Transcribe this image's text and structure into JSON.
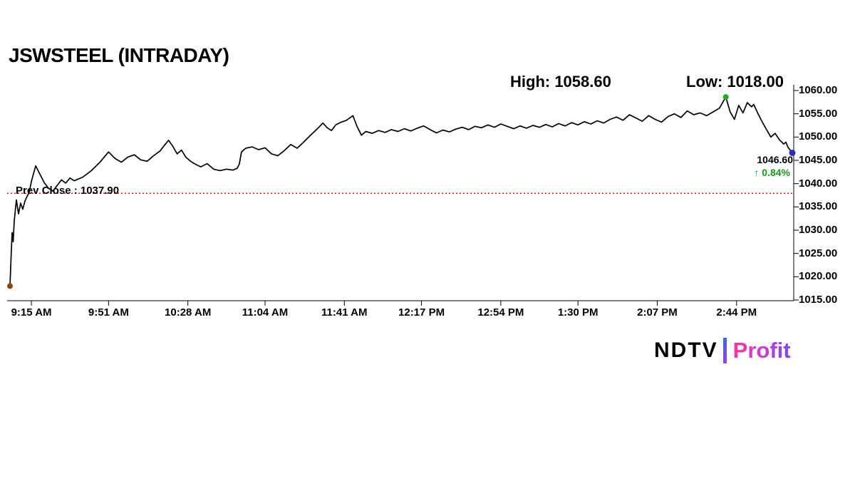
{
  "title": "JSWSTEEL (INTRADAY)",
  "labels": {
    "high": "High: 1058.60",
    "low": "Low: 1018.00",
    "prev_close": "Prev Close : 1037.90",
    "last_price": "1046.60",
    "change_percent": "↑ 0.84%"
  },
  "logo": {
    "ndtv": "NDTV",
    "separator": "|",
    "profit": "Profit"
  },
  "colors": {
    "line": "#000000",
    "prev_close": "#ff0000",
    "gain_text": "#159b15",
    "high_dot": "#28a428",
    "last_dot": "#2233bb",
    "open_dot": "#8b4513",
    "profit_gradient_start": "#ff2fa6",
    "profit_gradient_end": "#7a46f5"
  },
  "chart_data": {
    "type": "line",
    "title": "JSWSTEEL (INTRADAY)",
    "xlabel": "",
    "ylabel": "",
    "grid": false,
    "legend": "none",
    "high": 1058.6,
    "low": 1018.0,
    "last": 1046.6,
    "prev_close": 1037.9,
    "change_percent": 0.84,
    "ylim": [
      1015,
      1060
    ],
    "y_ticks": [
      1060,
      1055,
      1050,
      1045,
      1040,
      1035,
      1030,
      1025,
      1020,
      1015
    ],
    "y_tick_labels": [
      "1060.00",
      "1055.00",
      "1050.00",
      "1045.00",
      "1040.00",
      "1035.00",
      "1030.00",
      "1025.00",
      "1020.00",
      "1015.00"
    ],
    "x_tick_labels": [
      "9:15 AM",
      "9:51 AM",
      "10:28 AM",
      "11:04 AM",
      "11:41 AM",
      "12:17 PM",
      "12:54 PM",
      "1:30 PM",
      "2:07 PM",
      "2:44 PM"
    ],
    "x_tick_minutes": [
      0,
      36,
      73,
      109,
      146,
      182,
      219,
      255,
      292,
      329
    ],
    "xlim_minutes": [
      -10,
      355
    ],
    "series": [
      {
        "name": "price",
        "points": [
          [
            -10,
            1018.0
          ],
          [
            -9.5,
            1024.0
          ],
          [
            -9,
            1029.5
          ],
          [
            -8.5,
            1027.5
          ],
          [
            -8,
            1032.0
          ],
          [
            -7,
            1036.5
          ],
          [
            -6,
            1033.5
          ],
          [
            -5,
            1035.8
          ],
          [
            -4,
            1034.5
          ],
          [
            -3,
            1036.3
          ],
          [
            -1,
            1038.2
          ],
          [
            0,
            1040.5
          ],
          [
            2,
            1043.8
          ],
          [
            4,
            1042.0
          ],
          [
            6,
            1040.2
          ],
          [
            8,
            1039.0
          ],
          [
            10,
            1038.4
          ],
          [
            12,
            1039.6
          ],
          [
            14,
            1040.8
          ],
          [
            16,
            1040.1
          ],
          [
            18,
            1041.2
          ],
          [
            20,
            1040.6
          ],
          [
            24,
            1041.4
          ],
          [
            28,
            1042.8
          ],
          [
            32,
            1044.6
          ],
          [
            36,
            1046.8
          ],
          [
            39,
            1045.4
          ],
          [
            42,
            1044.6
          ],
          [
            45,
            1045.7
          ],
          [
            48,
            1046.2
          ],
          [
            51,
            1045.1
          ],
          [
            54,
            1044.8
          ],
          [
            57,
            1046.0
          ],
          [
            60,
            1047.0
          ],
          [
            62,
            1048.2
          ],
          [
            64,
            1049.3
          ],
          [
            66,
            1048.0
          ],
          [
            68,
            1046.4
          ],
          [
            70,
            1047.2
          ],
          [
            72,
            1045.7
          ],
          [
            74,
            1044.9
          ],
          [
            76,
            1044.3
          ],
          [
            79,
            1043.6
          ],
          [
            82,
            1044.3
          ],
          [
            85,
            1043.1
          ],
          [
            88,
            1042.8
          ],
          [
            91,
            1043.1
          ],
          [
            94,
            1042.9
          ],
          [
            96,
            1043.3
          ],
          [
            97,
            1044.2
          ],
          [
            98,
            1046.8
          ],
          [
            100,
            1047.6
          ],
          [
            103,
            1047.9
          ],
          [
            106,
            1047.3
          ],
          [
            109,
            1047.7
          ],
          [
            112,
            1046.4
          ],
          [
            115,
            1046.0
          ],
          [
            118,
            1047.1
          ],
          [
            121,
            1048.4
          ],
          [
            124,
            1047.6
          ],
          [
            127,
            1048.9
          ],
          [
            130,
            1050.3
          ],
          [
            133,
            1051.6
          ],
          [
            136,
            1053.0
          ],
          [
            138,
            1052.0
          ],
          [
            140,
            1051.4
          ],
          [
            142,
            1052.6
          ],
          [
            144,
            1053.1
          ],
          [
            147,
            1053.6
          ],
          [
            150,
            1054.6
          ],
          [
            152,
            1052.2
          ],
          [
            154,
            1050.4
          ],
          [
            156,
            1051.2
          ],
          [
            159,
            1050.8
          ],
          [
            162,
            1051.4
          ],
          [
            165,
            1051.0
          ],
          [
            168,
            1051.6
          ],
          [
            171,
            1051.2
          ],
          [
            174,
            1051.8
          ],
          [
            177,
            1051.3
          ],
          [
            180,
            1051.9
          ],
          [
            183,
            1052.4
          ],
          [
            186,
            1051.6
          ],
          [
            189,
            1050.9
          ],
          [
            192,
            1051.5
          ],
          [
            195,
            1051.1
          ],
          [
            198,
            1051.7
          ],
          [
            201,
            1052.1
          ],
          [
            204,
            1051.6
          ],
          [
            207,
            1052.3
          ],
          [
            210,
            1052.0
          ],
          [
            213,
            1052.6
          ],
          [
            216,
            1052.1
          ],
          [
            219,
            1052.8
          ],
          [
            222,
            1052.3
          ],
          [
            225,
            1051.8
          ],
          [
            228,
            1052.4
          ],
          [
            231,
            1051.9
          ],
          [
            234,
            1052.5
          ],
          [
            237,
            1052.1
          ],
          [
            240,
            1052.7
          ],
          [
            243,
            1052.2
          ],
          [
            246,
            1052.9
          ],
          [
            249,
            1052.4
          ],
          [
            252,
            1053.1
          ],
          [
            255,
            1052.6
          ],
          [
            258,
            1053.3
          ],
          [
            261,
            1052.8
          ],
          [
            264,
            1053.5
          ],
          [
            267,
            1053.0
          ],
          [
            270,
            1053.8
          ],
          [
            273,
            1054.3
          ],
          [
            276,
            1053.6
          ],
          [
            279,
            1054.8
          ],
          [
            282,
            1054.1
          ],
          [
            285,
            1053.4
          ],
          [
            288,
            1054.6
          ],
          [
            291,
            1053.8
          ],
          [
            294,
            1053.2
          ],
          [
            297,
            1054.4
          ],
          [
            300,
            1055.0
          ],
          [
            303,
            1054.2
          ],
          [
            306,
            1055.6
          ],
          [
            309,
            1054.8
          ],
          [
            312,
            1055.2
          ],
          [
            315,
            1054.6
          ],
          [
            318,
            1055.4
          ],
          [
            321,
            1056.2
          ],
          [
            324,
            1058.6
          ],
          [
            326,
            1055.4
          ],
          [
            328,
            1053.8
          ],
          [
            330,
            1056.8
          ],
          [
            332,
            1055.2
          ],
          [
            334,
            1057.4
          ],
          [
            336,
            1056.5
          ],
          [
            337,
            1057.0
          ],
          [
            339,
            1055.0
          ],
          [
            341,
            1053.2
          ],
          [
            343,
            1051.6
          ],
          [
            345,
            1050.0
          ],
          [
            347,
            1050.8
          ],
          [
            349,
            1049.4
          ],
          [
            351,
            1048.5
          ],
          [
            352,
            1048.9
          ],
          [
            353,
            1047.8
          ],
          [
            354,
            1047.2
          ],
          [
            355,
            1046.6
          ]
        ]
      }
    ],
    "markers": [
      {
        "name": "open-low-dot",
        "minute": -10,
        "price": 1018.0,
        "color": "#8b4513",
        "radius": 4
      },
      {
        "name": "session-high-dot",
        "minute": 324,
        "price": 1058.6,
        "color": "#28a428",
        "radius": 4
      },
      {
        "name": "last-trade-dot",
        "minute": 355,
        "price": 1046.6,
        "color": "#2233bb",
        "radius": 4.5
      }
    ]
  }
}
